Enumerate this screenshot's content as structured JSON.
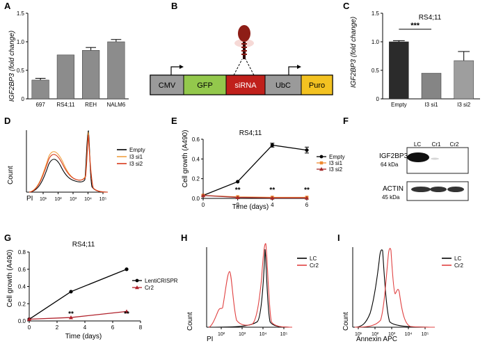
{
  "panels": {
    "A": {
      "label": "A"
    },
    "B": {
      "label": "B"
    },
    "C": {
      "label": "C"
    },
    "D": {
      "label": "D"
    },
    "E": {
      "label": "E"
    },
    "F": {
      "label": "F"
    },
    "G": {
      "label": "G"
    },
    "H": {
      "label": "H"
    },
    "I": {
      "label": "I"
    }
  },
  "construct": {
    "blocks": [
      "CMV",
      "GFP",
      "siRNA",
      "UbC",
      "Puro"
    ],
    "colors": [
      "#9a9a9a",
      "#93c84c",
      "#c0201b",
      "#9a9a9a",
      "#f3c221"
    ]
  },
  "western": {
    "lanes": [
      "LC",
      "Cr1",
      "Cr2"
    ],
    "rows": [
      {
        "name": "IGF2BP3",
        "size": "64 kDa"
      },
      {
        "name": "ACTIN",
        "size": "45 kDa"
      }
    ]
  },
  "chart_data": [
    {
      "panel": "A",
      "type": "bar",
      "categories": [
        "697",
        "RS4;11",
        "REH",
        "NALM6"
      ],
      "values": [
        0.33,
        0.77,
        0.85,
        1.0
      ],
      "errors": [
        0.03,
        0.0,
        0.05,
        0.04
      ],
      "ylabel": "IGF2BP3 (fold change)",
      "ylim": [
        0,
        1.5
      ],
      "yticks": [
        "0",
        "0.5",
        "1.0",
        "1.5"
      ]
    },
    {
      "panel": "C",
      "type": "bar",
      "title": "RS4;11",
      "categories": [
        "Empty",
        "I3 si1",
        "I3 si2"
      ],
      "values": [
        1.0,
        0.45,
        0.67
      ],
      "errors": [
        0.02,
        0.0,
        0.16
      ],
      "colors": [
        "#2b2b2b",
        "#858585",
        "#9e9e9e"
      ],
      "ylabel": "IGF2BP3 (fold change)",
      "ylim": [
        0,
        1.5
      ],
      "yticks": [
        "0",
        "0.5",
        "1.0",
        "1.5"
      ],
      "significance": "***"
    },
    {
      "panel": "D",
      "type": "line",
      "xlabel": "PI",
      "ylabel": "Count",
      "xticks": [
        "10¹",
        "10²",
        "10³",
        "10⁴",
        "10⁵"
      ],
      "legend": [
        "Empty",
        "I3 si1",
        "I3 si2"
      ],
      "colors": [
        "#000000",
        "#f0a040",
        "#d83a1a"
      ]
    },
    {
      "panel": "E",
      "type": "line",
      "title": "RS4;11",
      "xlabel": "Time (days)",
      "ylabel": "Cell growth (A490)",
      "xlim": [
        0,
        6
      ],
      "ylim": [
        0,
        0.6
      ],
      "xticks": [
        "0",
        "2",
        "4",
        "6"
      ],
      "yticks": [
        "0.0",
        "0.2",
        "0.4",
        "0.6"
      ],
      "series": [
        {
          "name": "Empty",
          "x": [
            0,
            2,
            4,
            6
          ],
          "values": [
            0.03,
            0.17,
            0.54,
            0.49
          ],
          "errors": [
            0,
            0,
            0.02,
            0.03
          ],
          "color": "#000000",
          "marker": "circle"
        },
        {
          "name": "I3 si1",
          "x": [
            0,
            2,
            4,
            6
          ],
          "values": [
            0.03,
            0.015,
            0.01,
            0.01
          ],
          "errors": [
            0,
            0,
            0,
            0
          ],
          "color": "#f08a30",
          "marker": "square"
        },
        {
          "name": "I3 si2",
          "x": [
            0,
            2,
            4,
            6
          ],
          "values": [
            0.03,
            0.01,
            0.005,
            0.005
          ],
          "errors": [
            0,
            0,
            0,
            0
          ],
          "color": "#a52a2a",
          "marker": "triangle"
        }
      ],
      "annotations": [
        {
          "x": 2,
          "text": "**"
        },
        {
          "x": 4,
          "text": "**"
        },
        {
          "x": 6,
          "text": "**"
        }
      ]
    },
    {
      "panel": "G",
      "type": "line",
      "title": "RS4;11",
      "xlabel": "Time (days)",
      "ylabel": "Cell growth (A490)",
      "xlim": [
        0,
        8
      ],
      "ylim": [
        0,
        0.8
      ],
      "xticks": [
        "0",
        "2",
        "4",
        "6",
        "8"
      ],
      "yticks": [
        "0.0",
        "0.2",
        "0.4",
        "0.6",
        "0.8"
      ],
      "series": [
        {
          "name": "LentiCRISPR",
          "x": [
            0,
            3,
            7
          ],
          "values": [
            0.02,
            0.34,
            0.6
          ],
          "color": "#000000",
          "marker": "circle"
        },
        {
          "name": "Cr2",
          "x": [
            0,
            3,
            7
          ],
          "values": [
            0.02,
            0.04,
            0.11
          ],
          "color": "#b0202a",
          "marker": "triangle"
        }
      ],
      "annotations": [
        {
          "x": 3,
          "text": "**"
        },
        {
          "x": 7,
          "text": "**"
        }
      ]
    },
    {
      "panel": "H",
      "type": "line",
      "xlabel": "PI",
      "ylabel": "Count",
      "xticks": [
        "10²",
        "10³",
        "10⁴",
        "10⁵"
      ],
      "legend": [
        "LC",
        "Cr2"
      ],
      "colors": [
        "#000000",
        "#e04040"
      ]
    },
    {
      "panel": "I",
      "type": "line",
      "xlabel": "Annexin APC",
      "ylabel": "Count",
      "xticks": [
        "10¹",
        "10²",
        "10³",
        "10⁴",
        "10⁵"
      ],
      "legend": [
        "LC",
        "Cr2"
      ],
      "colors": [
        "#000000",
        "#e04040"
      ]
    }
  ]
}
